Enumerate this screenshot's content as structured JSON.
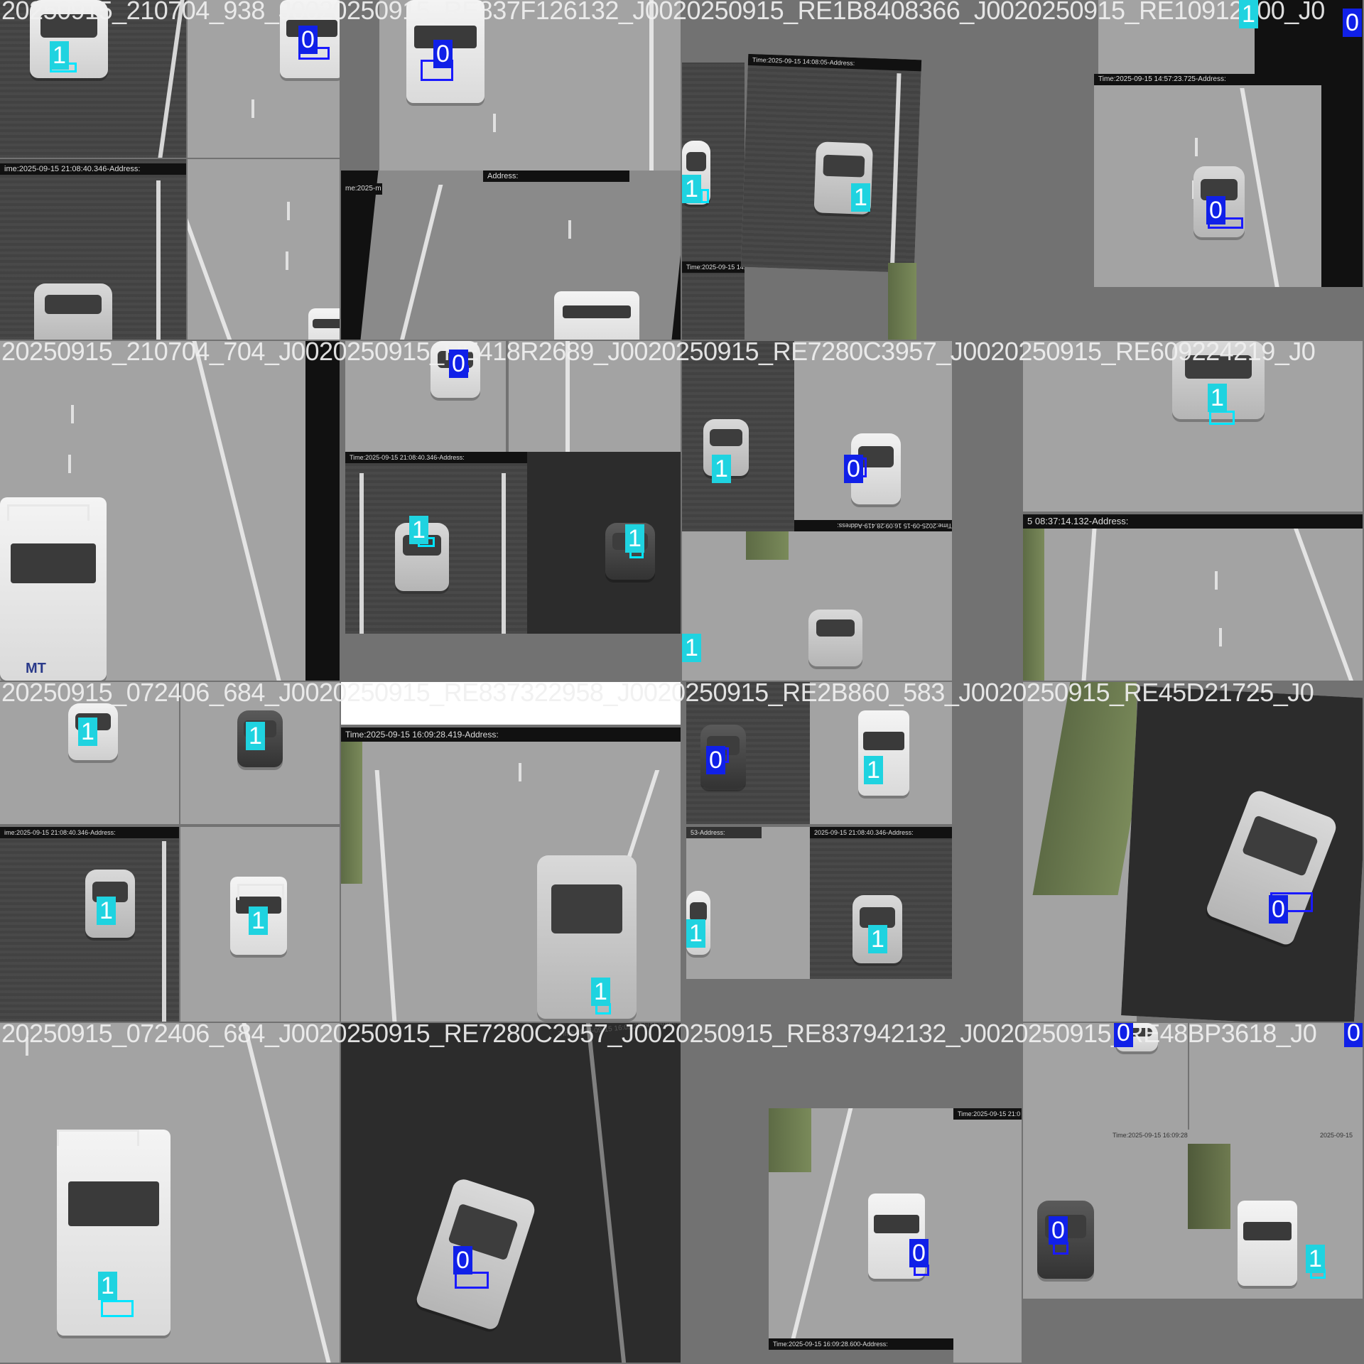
{
  "grid": {
    "columns": 4,
    "rows": 4
  },
  "class_colors": {
    "0": "#1020e8",
    "1": "#1fd3e0"
  },
  "tiles": [
    {
      "caption": "20250915_210704_938_J0020250915_RE837F126132_J0020250915_RE1B8408366_J0020250915_RE10912600_J0",
      "labels": [
        "1",
        "0"
      ],
      "banners": [
        "ime:2025-09-15 21:08:40.346-Address:"
      ]
    },
    {
      "caption": "20250915_RE837F126132",
      "labels": [
        "0"
      ],
      "banners": [
        "Address:",
        "me:2025-m"
      ]
    },
    {
      "caption": "20250915_RE1B8408366",
      "labels": [
        "1",
        "1"
      ],
      "banners": [
        "Time:2025-09-15 14:08:05-Address:",
        "Time:2025-09-15 14:18:13"
      ]
    },
    {
      "caption": "20250915_RE10912600_J0",
      "labels": [
        "1",
        "0",
        "0"
      ],
      "banners": [
        "Time:2025-09-15 14:57:23.725-Address:"
      ]
    },
    {
      "caption": "20250915_210704_704_J0020250915_RE418R2689_J0020250915_RE7280C3957_J0020250915_RE609224219_J0",
      "labels": [],
      "banners": []
    },
    {
      "caption": "20250915_RE418R2689",
      "labels": [
        "0",
        "1",
        "1"
      ],
      "banners": [
        "Time:2025-09-15 21:08:40.346-Address:"
      ]
    },
    {
      "caption": "20250915_RE7280C3957",
      "labels": [
        "1",
        "0",
        "1"
      ],
      "banners": [
        "Time:2025-09-15 16:09:28.419-Address:"
      ]
    },
    {
      "caption": "20250915_RE609224219",
      "labels": [
        "1"
      ],
      "banners": [
        "5 08:37:14.132-Address:"
      ]
    },
    {
      "caption": "20250915_072406_684_J0020250915_RE837322958_J0020250915_RE2B860_583_J0020250915_RE45D21725_J0",
      "labels": [
        "1",
        "1",
        "1",
        "1"
      ],
      "banners": [
        "ime:2025-09-15 21:08:40.346-Address:"
      ]
    },
    {
      "caption": "20250915_RE837322958",
      "labels": [
        "1"
      ],
      "banners": [
        "Time:2025-09-15 16:09:28.419-Address:"
      ]
    },
    {
      "caption": "20250915_RE2B860_583",
      "labels": [
        "0",
        "1",
        "1",
        "1"
      ],
      "banners": [
        "2025-09-15 21:08:40.346-Address:",
        "53-Address:"
      ]
    },
    {
      "caption": "20250915_RE45D21725",
      "labels": [
        "0"
      ],
      "banners": []
    },
    {
      "caption": "20250915_072406_684_J0020250915_RE7280C2957_J0020250915_RE837942132_J0020250915_RE48BP3618_J0",
      "labels": [
        "1"
      ],
      "banners": []
    },
    {
      "caption": "20250915_RE7280C2957",
      "labels": [
        "0"
      ],
      "banners": [
        "Time:2025-09-15 16:09:28.600-Address:"
      ]
    },
    {
      "caption": "20250915_RE837942132",
      "labels": [
        "0"
      ],
      "banners": [
        "Time:2025-09-15 16:09:28.600-Address:",
        "Time:2025-09-15 21:0"
      ]
    },
    {
      "caption": "20250915_RE48BP3618",
      "labels": [
        "0",
        "0",
        "0",
        "1"
      ],
      "banners": [
        "Time:2025-09-15 16:09:28.600-Address:",
        "2025-09-15"
      ]
    }
  ],
  "row_captions": [
    "20250915_210704_938_J0020250915_RE837F126132_J0020250915_RE1B8408366_J0020250915_RE10912600_J0",
    "20250915_210704_704_J0020250915_RE418R2689_J0020250915_RE7280C3957_J0020250915_RE609224219_J0",
    "20250915_072406_684_J0020250915_RE837322958_J0020250915_RE2B860_583_J0020250915_RE45D21725_J0",
    "20250915_072406_684_J0020250915_RE7280C2957_J0020250915_RE837942132_J0020250915_RE48BP3618_J0"
  ],
  "logo_text": "MT"
}
